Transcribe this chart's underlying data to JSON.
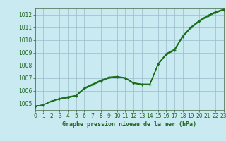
{
  "title": "Graphe pression niveau de la mer (hPa)",
  "xlim": [
    0,
    23
  ],
  "ylim": [
    1004.5,
    1012.5
  ],
  "yticks": [
    1005,
    1006,
    1007,
    1008,
    1009,
    1010,
    1011,
    1012
  ],
  "xticks": [
    0,
    1,
    2,
    3,
    4,
    5,
    6,
    7,
    8,
    9,
    10,
    11,
    12,
    13,
    14,
    15,
    16,
    17,
    18,
    19,
    20,
    21,
    22,
    23
  ],
  "bg_color": "#c8eaf0",
  "plot_bg": "#c8eaf0",
  "grid_color": "#99bbcc",
  "line_color": "#1a6e1a",
  "series1": [
    1004.8,
    1004.9,
    1005.2,
    1005.4,
    1005.5,
    1005.6,
    1006.2,
    1006.5,
    1006.8,
    1007.05,
    1007.1,
    1007.0,
    1006.6,
    1006.5,
    1006.5,
    1008.1,
    1008.9,
    1009.2,
    1010.3,
    1011.0,
    1011.5,
    1011.9,
    1012.2,
    1012.4
  ],
  "series2": [
    1004.8,
    1004.9,
    1005.2,
    1005.4,
    1005.55,
    1005.65,
    1006.25,
    1006.55,
    1006.85,
    1007.1,
    1007.15,
    1007.05,
    1006.65,
    1006.55,
    1006.55,
    1008.15,
    1008.95,
    1009.3,
    1010.35,
    1011.05,
    1011.55,
    1011.95,
    1012.25,
    1012.45
  ],
  "series3": [
    1004.8,
    1004.9,
    1005.15,
    1005.35,
    1005.45,
    1005.6,
    1006.15,
    1006.45,
    1006.75,
    1007.0,
    1007.08,
    1007.0,
    1006.6,
    1006.5,
    1006.5,
    1008.08,
    1008.85,
    1009.2,
    1010.25,
    1010.95,
    1011.45,
    1011.85,
    1012.15,
    1012.38
  ],
  "series4": [
    1004.8,
    1004.9,
    1005.2,
    1005.4,
    1005.5,
    1005.65,
    1006.2,
    1006.5,
    1006.8,
    1007.05,
    1007.1,
    1007.02,
    1006.62,
    1006.52,
    1006.52,
    1008.12,
    1008.92,
    1009.25,
    1010.32,
    1011.02,
    1011.52,
    1011.92,
    1012.22,
    1012.42
  ],
  "tick_fontsize": 5.5,
  "label_fontsize": 6.0,
  "tick_color": "#226622",
  "label_color": "#226622"
}
